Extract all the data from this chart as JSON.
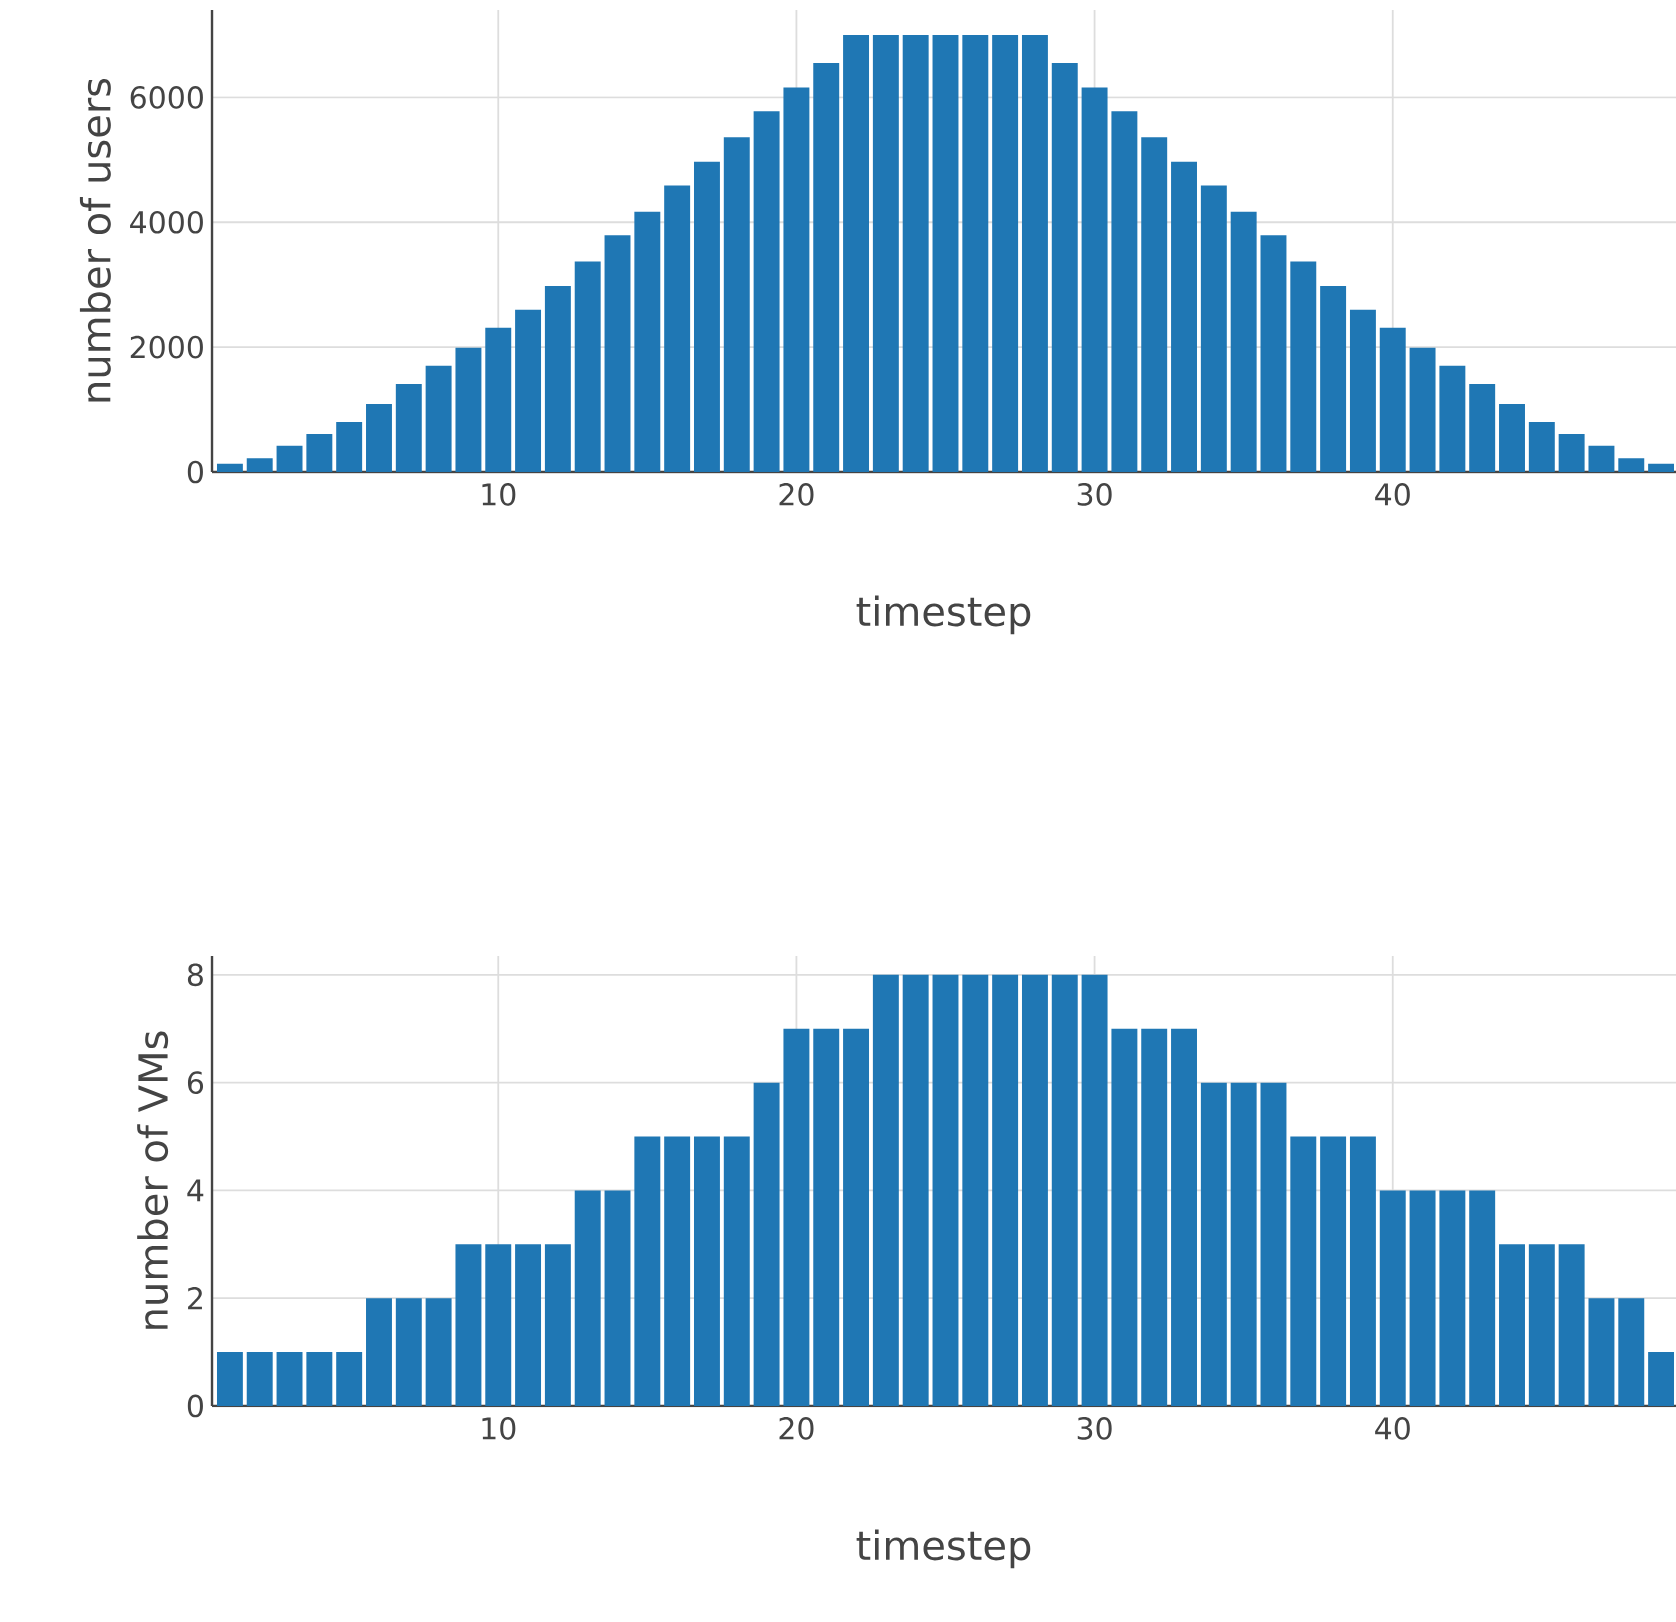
{
  "chart_data": [
    {
      "type": "bar",
      "xlabel": "timestep",
      "ylabel": "number of users",
      "color": "#1f77b4",
      "grid": true,
      "x": [
        1,
        2,
        3,
        4,
        5,
        6,
        7,
        8,
        9,
        10,
        11,
        12,
        13,
        14,
        15,
        16,
        17,
        18,
        19,
        20,
        21,
        22,
        23,
        24,
        25,
        26,
        27,
        28,
        29,
        30,
        31,
        32,
        33,
        34,
        35,
        36,
        37,
        38,
        39,
        40,
        41,
        42,
        43,
        44,
        45,
        46,
        47,
        48,
        49
      ],
      "values": [
        130,
        220,
        420,
        610,
        800,
        1090,
        1410,
        1700,
        1990,
        2310,
        2600,
        2980,
        3370,
        3790,
        4170,
        4590,
        4970,
        5360,
        5780,
        6160,
        6550,
        7000,
        7000,
        7000,
        7000,
        7000,
        7000,
        7000,
        6550,
        6160,
        5780,
        5360,
        4970,
        4590,
        4170,
        3790,
        3370,
        2980,
        2600,
        2310,
        1990,
        1700,
        1410,
        1090,
        800,
        610,
        420,
        220,
        130
      ],
      "xlim": [
        0.4,
        49.5
      ],
      "ylim": [
        0,
        7400
      ],
      "xticks": [
        10,
        20,
        30,
        40
      ],
      "yticks": [
        0,
        2000,
        4000,
        6000
      ]
    },
    {
      "type": "bar",
      "xlabel": "timestep",
      "ylabel": "number of VMs",
      "color": "#1f77b4",
      "grid": true,
      "x": [
        1,
        2,
        3,
        4,
        5,
        6,
        7,
        8,
        9,
        10,
        11,
        12,
        13,
        14,
        15,
        16,
        17,
        18,
        19,
        20,
        21,
        22,
        23,
        24,
        25,
        26,
        27,
        28,
        29,
        30,
        31,
        32,
        33,
        34,
        35,
        36,
        37,
        38,
        39,
        40,
        41,
        42,
        43,
        44,
        45,
        46,
        47,
        48,
        49
      ],
      "values": [
        1,
        1,
        1,
        1,
        1,
        2,
        2,
        2,
        3,
        3,
        3,
        3,
        4,
        4,
        5,
        5,
        5,
        5,
        6,
        7,
        7,
        7,
        8,
        8,
        8,
        8,
        8,
        8,
        8,
        8,
        7,
        7,
        7,
        6,
        6,
        6,
        5,
        5,
        5,
        4,
        4,
        4,
        4,
        3,
        3,
        3,
        2,
        2,
        1
      ],
      "xlim": [
        0.4,
        49.5
      ],
      "ylim": [
        0,
        8.35
      ],
      "xticks": [
        10,
        20,
        30,
        40
      ],
      "yticks": [
        0,
        2,
        4,
        6,
        8
      ]
    }
  ]
}
